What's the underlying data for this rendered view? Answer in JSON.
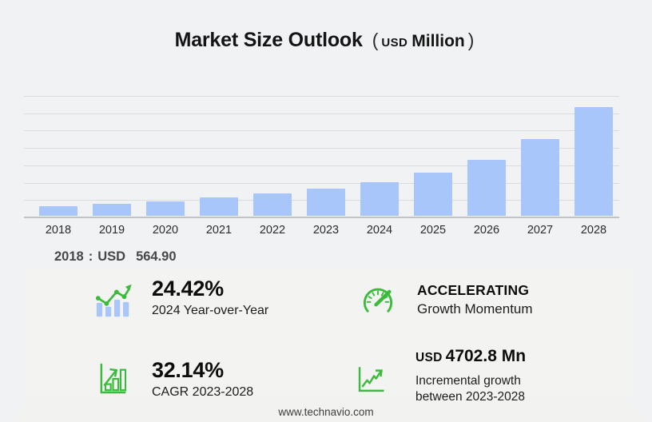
{
  "title": {
    "text": "Market Size Outlook",
    "paren_open": "(",
    "unit_currency": "USD",
    "unit_scale": "Million",
    "paren_close": ")"
  },
  "chart_data": {
    "type": "bar",
    "title": "Market Size Outlook (USD Million)",
    "categories": [
      "2018",
      "2019",
      "2020",
      "2021",
      "2022",
      "2023",
      "2024",
      "2025",
      "2026",
      "2027",
      "2028"
    ],
    "values": [
      564.9,
      680,
      850,
      1050,
      1270,
      1554,
      1933,
      2485,
      3225,
      4430,
      6257
    ],
    "unit": "USD Million",
    "xlabel": "",
    "ylabel": "",
    "ylim": [
      0,
      7000
    ],
    "gridline_step": 1000,
    "grid": true,
    "y_tick_labels_visible": false,
    "legend": "none",
    "bar_color": "#a8c6fa"
  },
  "anchor_note": {
    "year": "2018",
    "colon": ":",
    "currency": "USD",
    "value": "564.90"
  },
  "stats": {
    "yoy": {
      "icon": "bar-chart-trend-icon",
      "value": "24.42%",
      "label": "2024 Year-over-Year"
    },
    "momentum": {
      "icon": "gauge-icon",
      "value": "ACCELERATING",
      "label": "Growth Momentum"
    },
    "cagr": {
      "icon": "growth-bars-arrow-icon",
      "value": "32.14%",
      "label": "CAGR 2023-2028"
    },
    "incremental": {
      "icon": "line-growth-icon",
      "currency": "USD",
      "value": "4702.8 Mn",
      "label_line1": "Incremental growth",
      "label_line2": "between 2023-2028"
    }
  },
  "footer": {
    "url": "www.technavio.com"
  },
  "colors": {
    "page_bg": "#f1f2f4",
    "panel_bg": "#f3f3f1",
    "bar_blue": "#a8c6fa",
    "accent_green": "#3bbb3b",
    "gridline": "#dadbdd",
    "axis_line": "#c0c2c5",
    "title_text": "#141414",
    "note_text": "#474747"
  }
}
